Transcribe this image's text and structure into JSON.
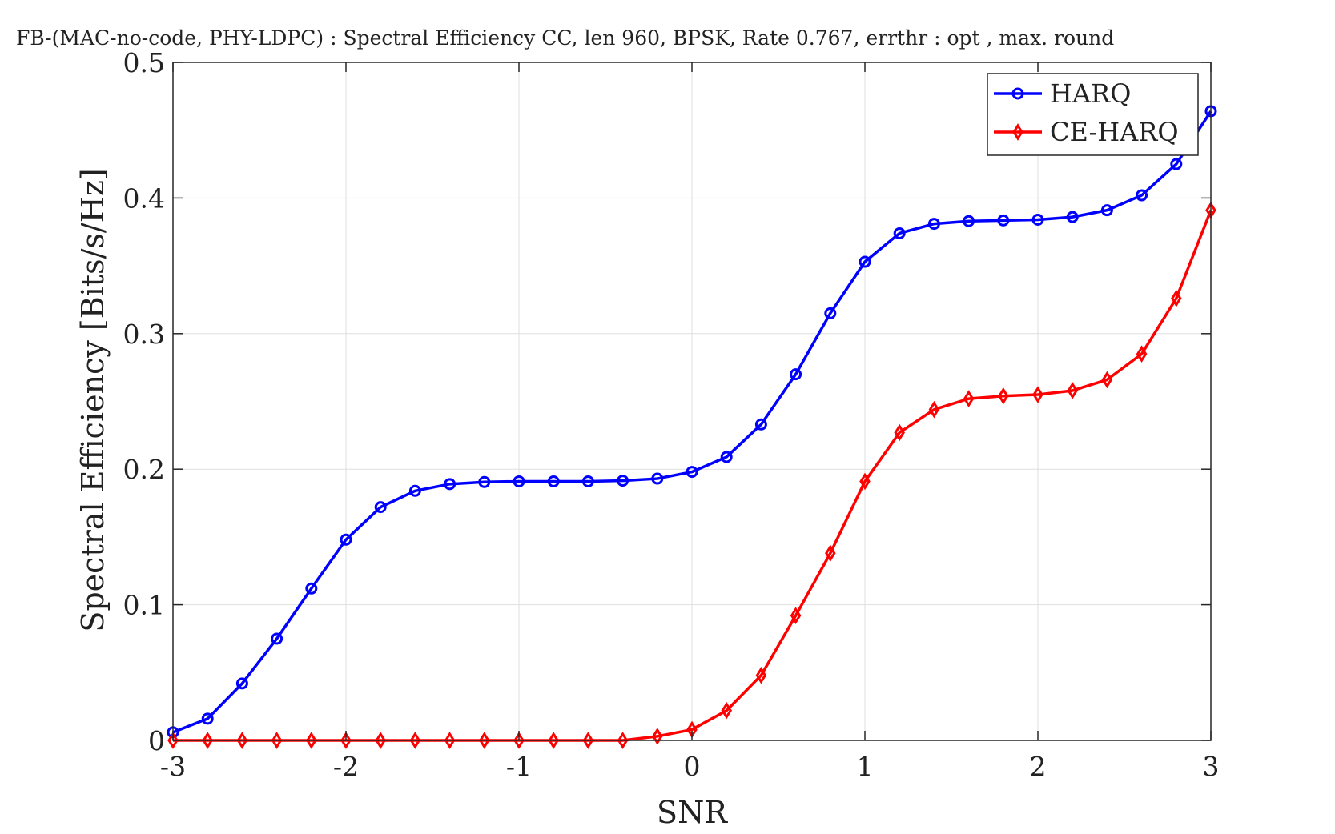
{
  "chart_data": {
    "type": "line",
    "title": "FB-(MAC-no-code, PHY-LDPC) : Spectral Efficiency CC, len 960, BPSK, Rate 0.767, errthr : opt , max. round",
    "xlabel": "SNR",
    "ylabel": "Spectral Efficiency [Bits/s/Hz]",
    "xlim": [
      -3,
      3
    ],
    "ylim": [
      0,
      0.5
    ],
    "xticks": [
      "-3",
      "-2",
      "-1",
      "0",
      "1",
      "2",
      "3"
    ],
    "yticks": [
      "0",
      "0.1",
      "0.2",
      "0.3",
      "0.4",
      "0.5"
    ],
    "grid": true,
    "legend_position": "top-right",
    "x": [
      -3,
      -2.8,
      -2.6,
      -2.4,
      -2.2,
      -2,
      -1.8,
      -1.6,
      -1.4,
      -1.2,
      -1,
      -0.8,
      -0.6,
      -0.4,
      -0.2,
      0,
      0.2,
      0.4,
      0.6,
      0.8,
      1,
      1.2,
      1.4,
      1.6,
      1.8,
      2,
      2.2,
      2.4,
      2.6,
      2.8,
      3
    ],
    "series": [
      {
        "name": "HARQ",
        "color": "#0000ff",
        "marker": "circle",
        "values": [
          0.006,
          0.016,
          0.042,
          0.075,
          0.112,
          0.148,
          0.172,
          0.184,
          0.189,
          0.1905,
          0.191,
          0.191,
          0.191,
          0.1915,
          0.193,
          0.198,
          0.209,
          0.233,
          0.27,
          0.315,
          0.353,
          0.374,
          0.381,
          0.383,
          0.3835,
          0.384,
          0.386,
          0.391,
          0.402,
          0.425,
          0.464
        ]
      },
      {
        "name": "CE-HARQ",
        "color": "#ff0000",
        "marker": "diamond",
        "values": [
          0,
          0,
          0,
          0,
          0,
          0,
          0,
          0,
          0,
          0,
          0,
          0,
          0,
          0,
          0.003,
          0.008,
          0.022,
          0.048,
          0.092,
          0.138,
          0.191,
          0.227,
          0.244,
          0.252,
          0.254,
          0.255,
          0.258,
          0.266,
          0.285,
          0.326,
          0.391
        ]
      }
    ]
  }
}
